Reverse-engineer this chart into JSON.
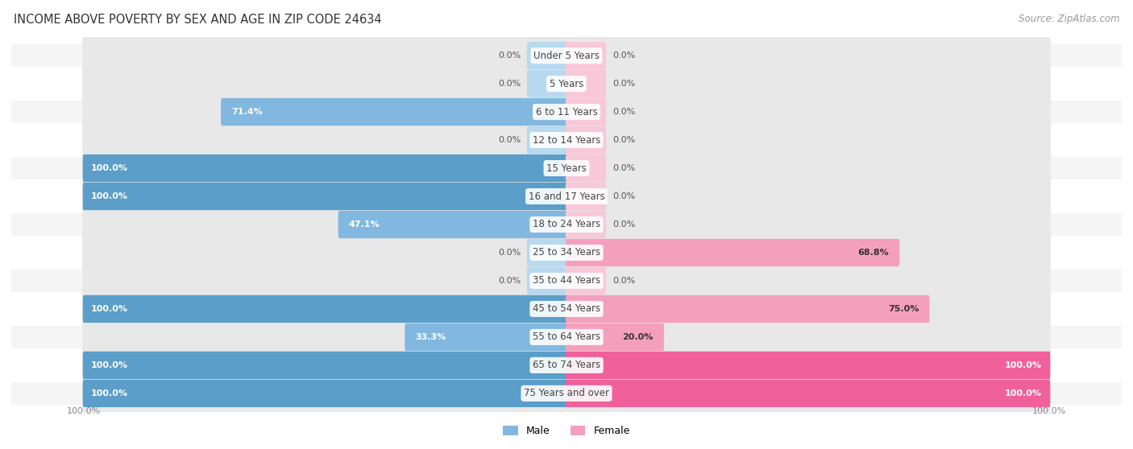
{
  "title": "INCOME ABOVE POVERTY BY SEX AND AGE IN ZIP CODE 24634",
  "source": "Source: ZipAtlas.com",
  "categories": [
    "Under 5 Years",
    "5 Years",
    "6 to 11 Years",
    "12 to 14 Years",
    "15 Years",
    "16 and 17 Years",
    "18 to 24 Years",
    "25 to 34 Years",
    "35 to 44 Years",
    "45 to 54 Years",
    "55 to 64 Years",
    "65 to 74 Years",
    "75 Years and over"
  ],
  "male": [
    0.0,
    0.0,
    71.4,
    0.0,
    100.0,
    100.0,
    47.1,
    0.0,
    0.0,
    100.0,
    33.3,
    100.0,
    100.0
  ],
  "female": [
    0.0,
    0.0,
    0.0,
    0.0,
    0.0,
    0.0,
    0.0,
    68.8,
    0.0,
    75.0,
    20.0,
    100.0,
    100.0
  ],
  "male_strong": "#5b9ec9",
  "male_medium": "#82b8df",
  "male_light": "#b8d9ef",
  "female_strong": "#f0609a",
  "female_medium": "#f4a0bc",
  "female_light": "#f8c8d8",
  "bg_pill": "#e8e8e8",
  "row_bg_odd": "#f5f5f5",
  "row_bg_even": "#ffffff",
  "max_value": 100.0,
  "stub_size": 8.0
}
